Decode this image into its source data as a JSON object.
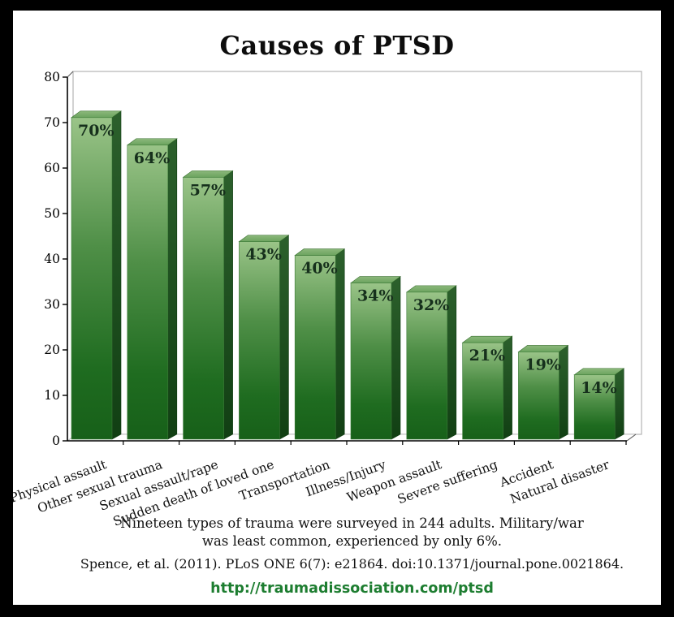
{
  "title": "Causes of PTSD",
  "chart_data": {
    "type": "bar",
    "style": "3d-vertical",
    "categories": [
      "Physical assault",
      "Other sexual trauma",
      "Sexual assault/rape",
      "Sudden death of loved one",
      "Transportation",
      "Illness/Injury",
      "Weapon assault",
      "Severe suffering",
      "Accident",
      "Natural disaster"
    ],
    "values": [
      70,
      64,
      57,
      43,
      40,
      34,
      32,
      21,
      19,
      14
    ],
    "data_labels": [
      "70%",
      "64%",
      "57%",
      "43%",
      "40%",
      "34%",
      "32%",
      "21%",
      "19%",
      "14%"
    ],
    "title": "Causes of PTSD",
    "xlabel": "",
    "ylabel": "",
    "ylim": [
      0,
      80
    ],
    "yticks": [
      0,
      10,
      20,
      30,
      40,
      50,
      60,
      70,
      80
    ],
    "grid": false,
    "legend_position": "none",
    "category_label_rotation_deg": -20
  },
  "notes": {
    "line1": "Nineteen types of trauma were surveyed in 244 adults. Military/war",
    "line2": "was least common, experienced by only 6%.",
    "citation": "Spence, et al. (2011). PLoS ONE 6(7): e21864. doi:10.1371/journal.pone.0021864.",
    "url": "http://traumadissociation.com/ptsd"
  },
  "colors": {
    "frame": "#000000",
    "background": "#ffffff",
    "bar_front_top": "#9ac488",
    "bar_front_mid": "#4f8f47",
    "bar_front_bottom": "#176019",
    "bar_side_top": "#2c602c",
    "bar_side_bottom": "#113f13",
    "bar_top_face": "#7fae6f",
    "bar_value_text": "#16301c",
    "axis": "#000000",
    "wall_border": "#b3b3b3",
    "url_green": "#1d7d30"
  }
}
